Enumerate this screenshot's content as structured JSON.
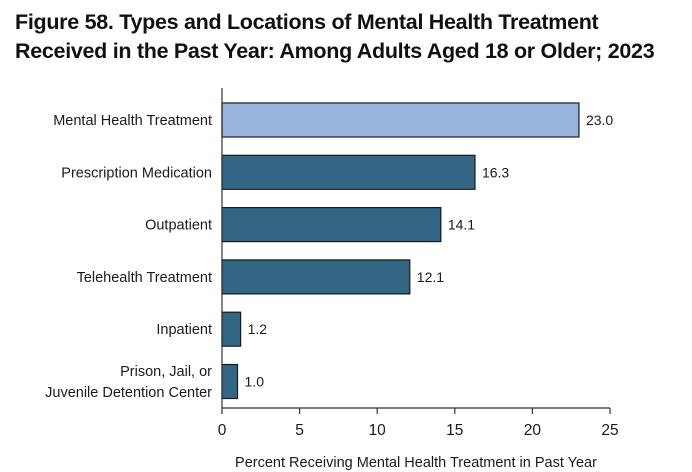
{
  "figure": {
    "title_line1": "Figure 58. Types and Locations of Mental Health Treatment",
    "title_line2": "Received in the Past Year: Among Adults Aged 18 or Older; 2023"
  },
  "chart_data": {
    "type": "bar",
    "orientation": "horizontal",
    "title": "Figure 58. Types and Locations of Mental Health Treatment Received in the Past Year: Among Adults Aged 18 or Older; 2023",
    "categories": [
      [
        "Mental Health Treatment"
      ],
      [
        "Prescription Medication"
      ],
      [
        "Outpatient"
      ],
      [
        "Telehealth Treatment"
      ],
      [
        "Inpatient"
      ],
      [
        "Prison, Jail, or",
        "Juvenile Detention Center"
      ]
    ],
    "values": [
      23.0,
      16.3,
      14.1,
      12.1,
      1.2,
      1.0
    ],
    "value_labels": [
      "23.0",
      "16.3",
      "14.1",
      "12.1",
      "1.2",
      "1.0"
    ],
    "bar_colors": [
      "#98b3dc",
      "#336685",
      "#336685",
      "#336685",
      "#336685",
      "#336685"
    ],
    "xlabel": "Percent Receiving Mental Health Treatment in Past Year",
    "ylabel": "",
    "xlim": [
      0,
      25
    ],
    "xticks": [
      0,
      5,
      10,
      15,
      20,
      25
    ],
    "grid": false,
    "legend": "none",
    "colors": {
      "axis": "#333333",
      "bar_outline": "#1a1a1a"
    }
  }
}
